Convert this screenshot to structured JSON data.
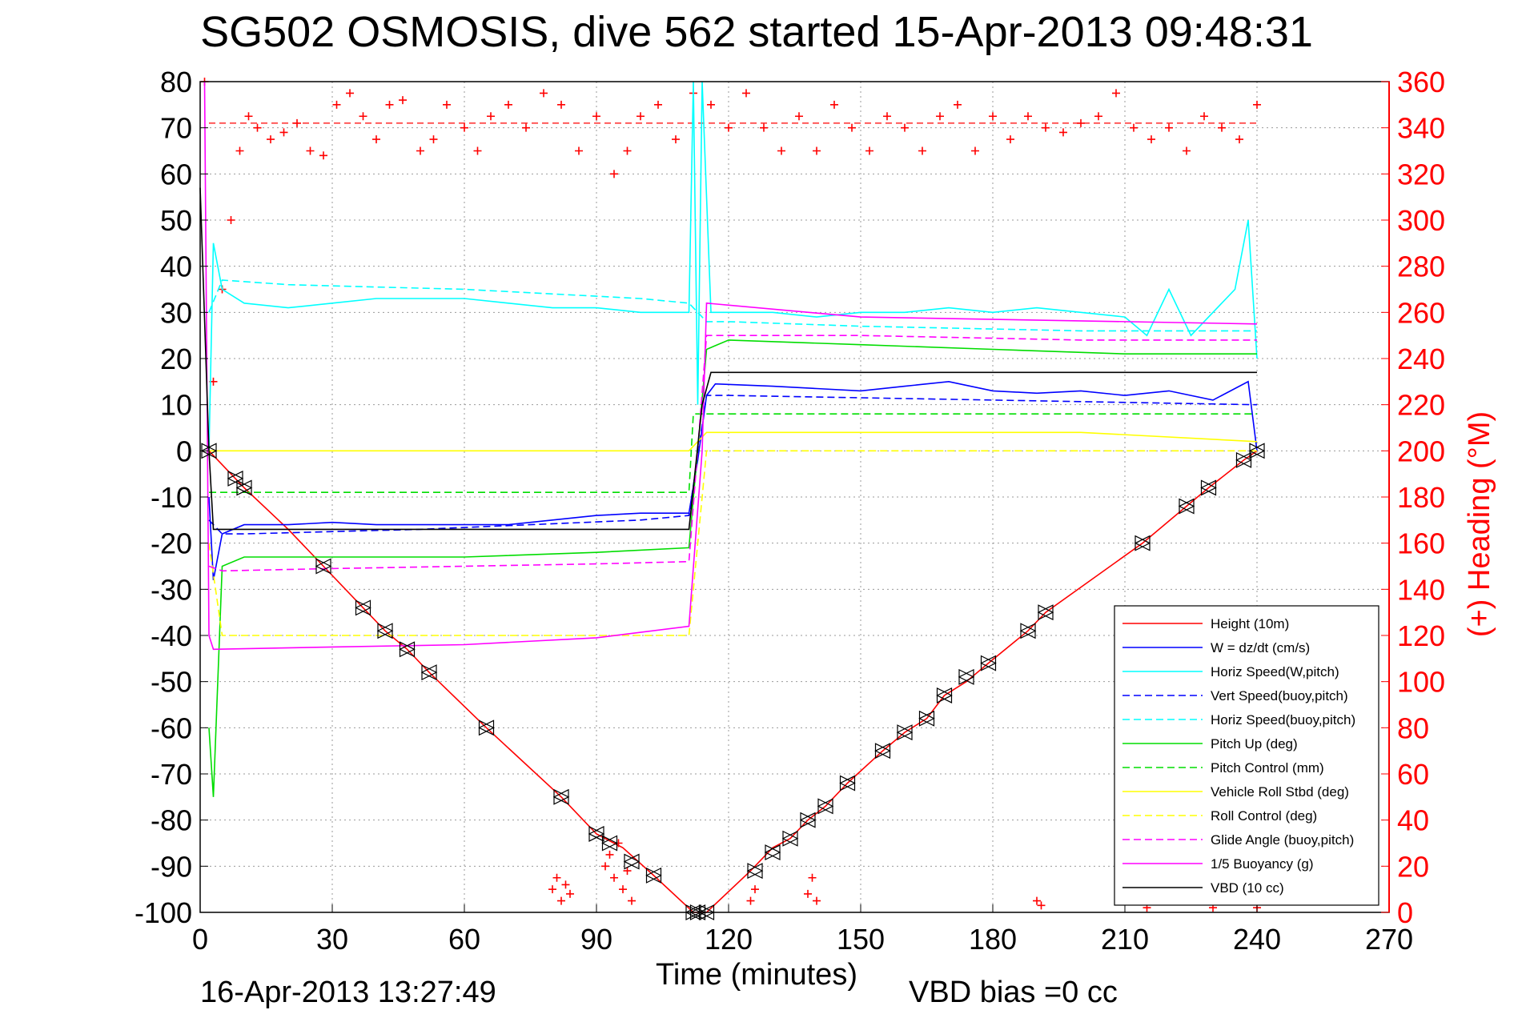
{
  "chart_data": {
    "type": "line",
    "title": "SG502 OSMOSIS, dive 562 started 15-Apr-2013 09:48:31",
    "xlabel": "Time (minutes)",
    "ylabel": "",
    "y2label": "(+) Heading (°M)",
    "xlim": [
      0,
      270
    ],
    "ylim": [
      -100,
      80
    ],
    "y2lim": [
      0,
      360
    ],
    "xticks": [
      0,
      30,
      60,
      90,
      120,
      150,
      180,
      210,
      240,
      270
    ],
    "yticks": [
      80,
      70,
      60,
      50,
      40,
      30,
      20,
      10,
      0,
      -10,
      -20,
      -30,
      -40,
      -50,
      -60,
      -70,
      -80,
      -90,
      -100
    ],
    "y2ticks": [
      360,
      340,
      320,
      300,
      280,
      260,
      240,
      220,
      200,
      180,
      160,
      140,
      120,
      100,
      80,
      60,
      40,
      20,
      0
    ],
    "grid": true,
    "legend_position": "bottom-right",
    "footer_left": "16-Apr-2013 13:27:49",
    "footer_right": "VBD bias =0 cc",
    "series": [
      {
        "name": "Height (10m)",
        "color": "#ff0000",
        "style": "solid",
        "x": [
          2,
          10,
          20,
          28,
          37,
          42,
          47,
          52,
          65,
          82,
          90,
          96,
          103,
          112,
          115,
          125,
          130,
          134,
          138,
          142,
          147,
          155,
          160,
          165,
          169,
          174,
          179,
          188,
          192,
          214,
          224,
          229,
          237,
          240
        ],
        "y": [
          0,
          -8,
          -17,
          -25,
          -34,
          -39,
          -43,
          -48,
          -60,
          -75,
          -83,
          -86,
          -92,
          -100,
          -100,
          -91,
          -86,
          -84,
          -80,
          -77,
          -72,
          -65,
          -61,
          -58,
          -53,
          -50,
          -46,
          -39,
          -35,
          -20,
          -12,
          -8,
          -2,
          0
        ]
      },
      {
        "name": "W = dz/dt (cm/s)",
        "color": "#0000ff",
        "style": "solid",
        "x": [
          2,
          3,
          5,
          10,
          20,
          30,
          40,
          50,
          60,
          70,
          80,
          90,
          100,
          111,
          113,
          115,
          117,
          130,
          140,
          150,
          160,
          170,
          180,
          190,
          200,
          210,
          220,
          230,
          238,
          240
        ],
        "y": [
          -10,
          -28,
          -18,
          -16,
          -16,
          -15.5,
          -16,
          -16,
          -16,
          -16,
          -15,
          -14,
          -13.5,
          -13.5,
          -2,
          12,
          14.5,
          14,
          13.5,
          13,
          14,
          15,
          13,
          12.5,
          13,
          12,
          13,
          11,
          15,
          0
        ]
      },
      {
        "name": "Horiz Speed(W,pitch)",
        "color": "#00ffff",
        "style": "solid",
        "x": [
          2,
          3,
          5,
          10,
          20,
          30,
          40,
          50,
          60,
          70,
          80,
          90,
          100,
          111,
          112,
          113,
          114,
          116,
          120,
          130,
          140,
          150,
          160,
          170,
          180,
          190,
          200,
          210,
          215,
          220,
          225,
          230,
          235,
          238,
          240
        ],
        "y": [
          0,
          45,
          35,
          32,
          31,
          32,
          33,
          33,
          33,
          32,
          31,
          31,
          30,
          30,
          80,
          10,
          80,
          30,
          30,
          30,
          29,
          30,
          30,
          31,
          30,
          31,
          30,
          29,
          25,
          35,
          25,
          30,
          35,
          50,
          20
        ]
      },
      {
        "name": "Vert Speed(buoy,pitch)",
        "color": "#0000ff",
        "style": "dashed",
        "x": [
          2,
          5,
          10,
          50,
          100,
          111,
          115,
          120,
          240
        ],
        "y": [
          -15,
          -18,
          -18,
          -17,
          -15,
          -14,
          12,
          12,
          10
        ]
      },
      {
        "name": "Horiz Speed(buoy,pitch)",
        "color": "#00ffff",
        "style": "dashed",
        "x": [
          2,
          5,
          20,
          60,
          100,
          111,
          115,
          120,
          150,
          200,
          240
        ],
        "y": [
          30,
          37,
          36,
          35,
          33,
          32,
          28,
          28,
          27,
          26,
          26
        ]
      },
      {
        "name": "Pitch Up (deg)",
        "color": "#00dd00",
        "style": "solid",
        "x": [
          2,
          3,
          5,
          10,
          30,
          60,
          90,
          111,
          115,
          120,
          150,
          180,
          210,
          240
        ],
        "y": [
          -60,
          -75,
          -25,
          -23,
          -23,
          -23,
          -22,
          -21,
          22,
          24,
          23,
          22,
          21,
          21
        ]
      },
      {
        "name": "Pitch Control (mm)",
        "color": "#00dd00",
        "style": "dashed",
        "x": [
          2,
          5,
          111,
          112,
          116,
          240
        ],
        "y": [
          -9,
          -9,
          -9,
          8,
          8,
          8
        ]
      },
      {
        "name": "Vehicle Roll Stbd (deg)",
        "color": "#ffff00",
        "style": "solid",
        "x": [
          2,
          5,
          30,
          60,
          90,
          111,
          115,
          150,
          200,
          240
        ],
        "y": [
          0,
          0,
          0,
          0,
          0,
          0,
          4,
          4,
          4,
          2
        ]
      },
      {
        "name": "Roll Control (deg)",
        "color": "#ffff00",
        "style": "dashed",
        "x": [
          2,
          5,
          111,
          115,
          240
        ],
        "y": [
          -20,
          -40,
          -40,
          0,
          0
        ]
      },
      {
        "name": "Glide Angle (buoy,pitch)",
        "color": "#ff00ff",
        "style": "dashed",
        "x": [
          2,
          5,
          30,
          60,
          90,
          111,
          115,
          150,
          200,
          240
        ],
        "y": [
          -25,
          -26,
          -25.5,
          -25,
          -24.5,
          -24,
          25,
          25,
          24,
          24
        ]
      },
      {
        "name": "1/5 Buoyancy (g)",
        "color": "#ff00ff",
        "style": "solid",
        "x": [
          1,
          2,
          3,
          30,
          60,
          90,
          111,
          114,
          115,
          150,
          240
        ],
        "y": [
          80,
          -40,
          -43,
          -42.5,
          -42,
          -40.5,
          -38,
          0,
          32,
          29,
          27.5
        ]
      },
      {
        "name": "VBD (10 cc)",
        "color": "#000000",
        "style": "solid",
        "x": [
          0,
          2,
          3,
          30,
          60,
          90,
          111,
          114,
          116,
          150,
          240
        ],
        "y": [
          57,
          0,
          -17,
          -17,
          -17,
          -17,
          -17,
          10,
          17,
          17,
          17
        ]
      }
    ],
    "heading": {
      "name": "(+) Heading",
      "color": "#ff0000",
      "marker": "+",
      "target": 342,
      "x": [
        1,
        3,
        5,
        7,
        9,
        11,
        13,
        16,
        19,
        22,
        25,
        28,
        31,
        34,
        37,
        40,
        43,
        46,
        50,
        53,
        56,
        60,
        63,
        66,
        70,
        74,
        78,
        82,
        86,
        90,
        94,
        97,
        100,
        104,
        108,
        112,
        116,
        120,
        124,
        128,
        132,
        136,
        140,
        144,
        148,
        152,
        156,
        160,
        164,
        168,
        172,
        176,
        180,
        184,
        188,
        192,
        196,
        200,
        204,
        208,
        212,
        216,
        220,
        224,
        228,
        232,
        236,
        240
      ],
      "y": [
        360,
        230,
        270,
        300,
        330,
        345,
        340,
        335,
        338,
        342,
        330,
        328,
        350,
        355,
        345,
        335,
        350,
        352,
        330,
        335,
        350,
        340,
        330,
        345,
        350,
        340,
        355,
        350,
        330,
        345,
        320,
        330,
        345,
        350,
        335,
        355,
        350,
        340,
        355,
        340,
        330,
        345,
        330,
        350,
        340,
        330,
        345,
        340,
        330,
        345,
        350,
        330,
        345,
        335,
        345,
        340,
        338,
        342,
        345,
        355,
        340,
        335,
        340,
        330,
        345,
        340,
        335,
        350
      ]
    },
    "heading_lows": {
      "x": [
        80,
        81,
        82,
        83,
        84,
        92,
        93,
        94,
        95,
        96,
        97,
        98,
        125,
        126,
        138,
        139,
        140,
        190,
        191,
        215,
        230,
        240
      ],
      "y": [
        10,
        15,
        5,
        12,
        8,
        20,
        25,
        15,
        30,
        10,
        18,
        5,
        5,
        10,
        8,
        15,
        5,
        5,
        3,
        2,
        2,
        2
      ]
    },
    "markers": {
      "x": [
        2,
        8,
        10,
        28,
        37,
        42,
        47,
        52,
        65,
        82,
        90,
        93,
        98,
        103,
        112,
        113,
        115,
        126,
        130,
        134,
        138,
        142,
        147,
        155,
        160,
        165,
        169,
        174,
        179,
        188,
        192,
        214,
        224,
        229,
        237,
        240
      ],
      "y": [
        0,
        -6,
        -8,
        -25,
        -34,
        -39,
        -43,
        -48,
        -60,
        -75,
        -83,
        -85,
        -89,
        -92,
        -100,
        -100,
        -100,
        -91,
        -87,
        -84,
        -80,
        -77,
        -72,
        -65,
        -61,
        -58,
        -53,
        -49,
        -46,
        -39,
        -35,
        -20,
        -12,
        -8,
        -2,
        0
      ]
    }
  }
}
